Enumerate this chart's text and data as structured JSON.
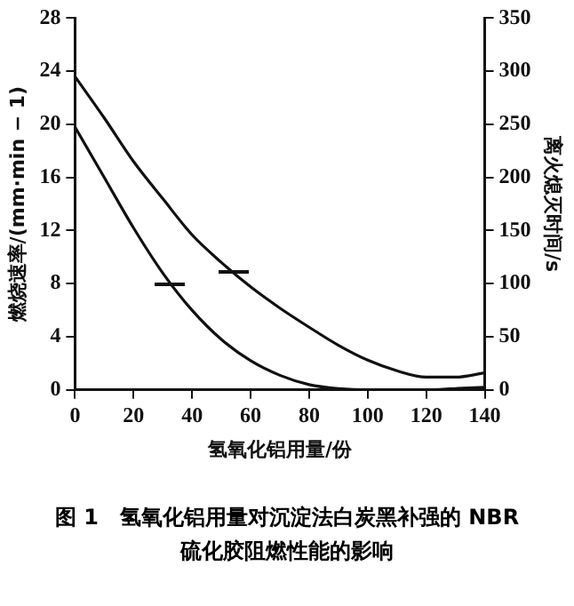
{
  "chart_data": {
    "type": "line",
    "title": "图 1　氢氧化铝用量对沉淀法白炭黑补强的 NBR 硫化胶阻燃性能的影响",
    "xlabel": "氢氧化铝用量/份",
    "ylabel": "燃烧速率/(mm·min − 1)",
    "y2label": "离火熄灭时间/s",
    "x": [
      0,
      10,
      20,
      30,
      40,
      50,
      60,
      70,
      80,
      90,
      100,
      110,
      120,
      130,
      140
    ],
    "series": [
      {
        "color": "#111111",
        "values": [
          19.8,
          16,
          12.2,
          8.8,
          6,
          3.8,
          2.2,
          1.1,
          0.4,
          0.1,
          0,
          0,
          0,
          0.1,
          0.2
        ]
      },
      {
        "color": "#111111",
        "axis": "y2",
        "values": [
          295,
          256,
          215,
          180,
          146,
          120,
          97,
          77,
          59,
          42,
          28,
          18,
          12,
          12,
          16
        ]
      }
    ],
    "xlim": [
      0,
      140
    ],
    "xticks": [
      0,
      20,
      40,
      60,
      80,
      100,
      120,
      140
    ],
    "ylim": [
      0,
      28
    ],
    "yticks": [
      0,
      4,
      8,
      12,
      16,
      20,
      24,
      28
    ],
    "y2lim": [
      0,
      350
    ],
    "y2ticks": [
      0,
      50,
      100,
      150,
      200,
      250,
      300,
      350
    ],
    "legend": false,
    "marker": "none",
    "line_style": "solid"
  }
}
